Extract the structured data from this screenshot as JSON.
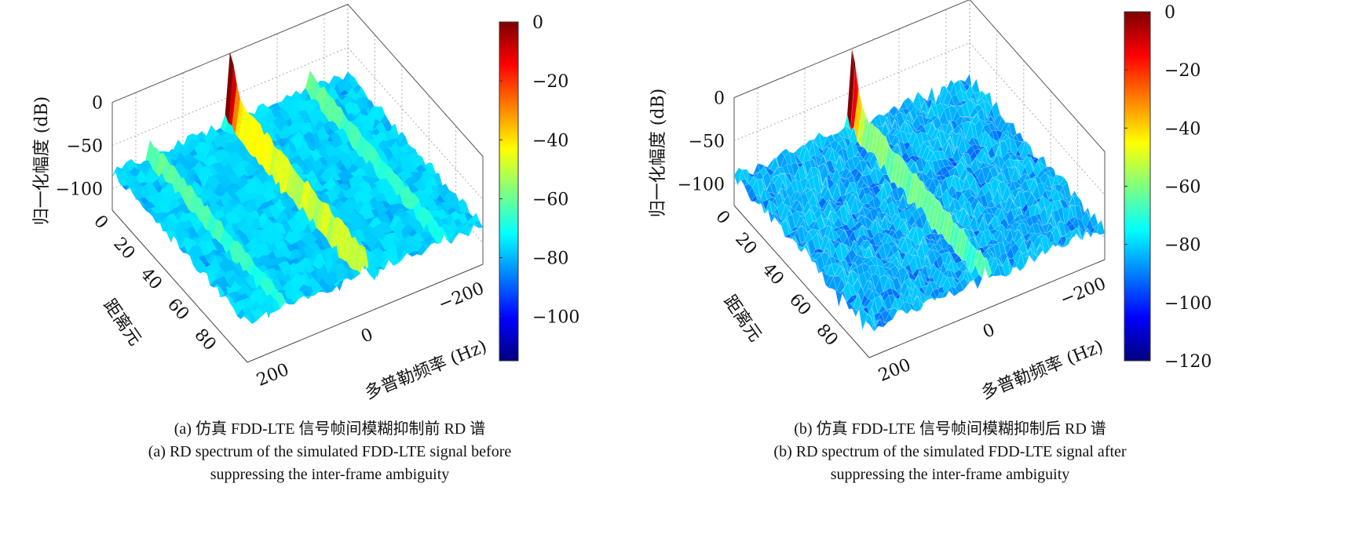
{
  "figure": {
    "panels": [
      {
        "caption_cn": "(a) 仿真 FDD-LTE 信号帧间模糊抑制前 RD 谱",
        "caption_en_1": "(a) RD spectrum of the simulated FDD-LTE signal before",
        "caption_en_2": "suppressing the inter-frame ambiguity"
      },
      {
        "caption_cn": "(b) 仿真 FDD-LTE 信号帧间模糊抑制后 RD 谱",
        "caption_en_1": "(b) RD spectrum of the simulated FDD-LTE signal after",
        "caption_en_2": "suppressing the inter-frame ambiguity"
      }
    ]
  },
  "chart_data": [
    {
      "type": "surface",
      "zlabel": "归一化幅度 (dB)",
      "ylabel": "距离元",
      "xlabel": "多普勒频率 (Hz)",
      "z_ticks": [
        "0",
        "−50",
        "−100"
      ],
      "range_ticks": [
        "0",
        "20",
        "40",
        "60",
        "80"
      ],
      "doppler_ticks": [
        "200",
        "0",
        "−200"
      ],
      "range_lim": [
        0,
        100
      ],
      "doppler_lim": [
        250,
        -250
      ],
      "zlim": [
        -125,
        0
      ],
      "colormap": "jet",
      "colorbar_ticks": [
        "0",
        "−20",
        "−40",
        "−60",
        "−80",
        "−100"
      ],
      "colorbar_lim": [
        -115,
        0
      ],
      "noise_floor_db": -80,
      "peak": {
        "range": 0,
        "doppler": 0,
        "db": 0
      },
      "ridges": [
        {
          "doppler": 0,
          "db": -45
        },
        {
          "doppler": 170,
          "db": -62
        },
        {
          "doppler": 85,
          "db": -60
        },
        {
          "doppler": -85,
          "db": -60
        },
        {
          "doppler": -170,
          "db": -62
        }
      ]
    },
    {
      "type": "surface",
      "zlabel": "归一化幅度 (dB)",
      "ylabel": "距离元",
      "xlabel": "多普勒频率 (Hz)",
      "z_ticks": [
        "0",
        "−50",
        "−100"
      ],
      "range_ticks": [
        "0",
        "20",
        "40",
        "60",
        "80"
      ],
      "doppler_ticks": [
        "200",
        "0",
        "−200"
      ],
      "range_lim": [
        0,
        100
      ],
      "doppler_lim": [
        250,
        -250
      ],
      "zlim": [
        -125,
        0
      ],
      "colormap": "jet",
      "colorbar_ticks": [
        "0",
        "−20",
        "−40",
        "−60",
        "−80",
        "−100",
        "−120"
      ],
      "colorbar_lim": [
        -120,
        0
      ],
      "noise_floor_db": -90,
      "peak": {
        "range": 0,
        "doppler": 0,
        "db": 0
      },
      "ridges": [
        {
          "doppler": 0,
          "db": -60
        }
      ]
    }
  ]
}
